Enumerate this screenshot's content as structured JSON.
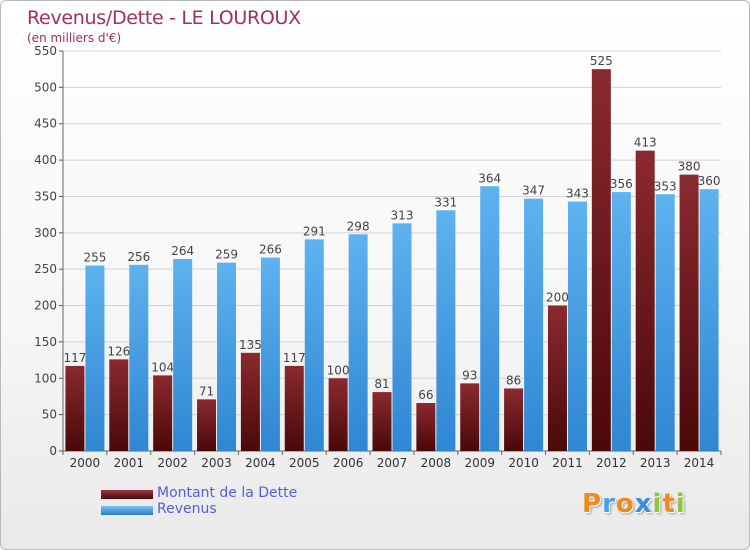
{
  "chart_data": {
    "type": "bar",
    "title": "Revenus/Dette - LE LOUROUX",
    "subtitle": "(en milliers d'€)",
    "categories": [
      "2000",
      "2001",
      "2002",
      "2003",
      "2004",
      "2005",
      "2006",
      "2007",
      "2008",
      "2009",
      "2010",
      "2011",
      "2012",
      "2013",
      "2014"
    ],
    "series": [
      {
        "name": "Montant de la Dette",
        "color": "#7a1f24",
        "values": [
          117,
          126,
          104,
          71,
          135,
          117,
          100,
          81,
          66,
          93,
          86,
          200,
          525,
          413,
          380
        ]
      },
      {
        "name": "Revenus",
        "color": "#4aa3e6",
        "values": [
          255,
          256,
          264,
          259,
          266,
          291,
          298,
          313,
          331,
          364,
          347,
          343,
          356,
          353,
          360
        ]
      }
    ],
    "ylim": [
      0,
      550
    ],
    "yticks": [
      0,
      50,
      100,
      150,
      200,
      250,
      300,
      350,
      400,
      450,
      500,
      550
    ],
    "grid": true,
    "legend_position": "bottom-left"
  },
  "logo": {
    "letters": [
      {
        "ch": "P",
        "color": "#f08a1c"
      },
      {
        "ch": "r",
        "color": "#4aa3e6"
      },
      {
        "ch": "o",
        "color": "#f08a1c"
      },
      {
        "ch": "x",
        "color": "#3a8fd8"
      },
      {
        "ch": "i",
        "color": "#8cc63f"
      },
      {
        "ch": "t",
        "color": "#f08a1c"
      },
      {
        "ch": "i",
        "color": "#8cc63f"
      }
    ]
  }
}
